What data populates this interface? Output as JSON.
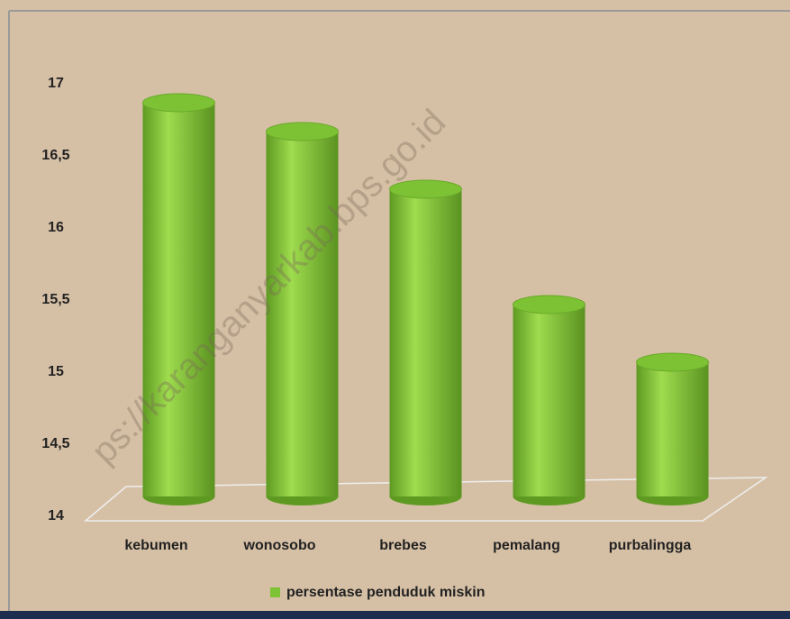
{
  "chart_data": {
    "type": "bar",
    "categories": [
      "kebumen",
      "wonosobo",
      "brebes",
      "pemalang",
      "purbalingga"
    ],
    "series": [
      {
        "name": "persentase penduduk miskin",
        "color": "#7cc234",
        "values": [
          16.9,
          16.7,
          16.3,
          15.5,
          15.1
        ]
      }
    ],
    "ylim": [
      14,
      17
    ],
    "yticks": [
      14,
      {
        "value": 14.5,
        "label": "14,5"
      },
      15,
      {
        "value": 15.5,
        "label": "15,5"
      },
      16,
      {
        "value": 16.5,
        "label": "16,5"
      },
      17
    ],
    "legend": "bottom",
    "watermark": "ps://karanganyarkab.bps.go.id"
  }
}
